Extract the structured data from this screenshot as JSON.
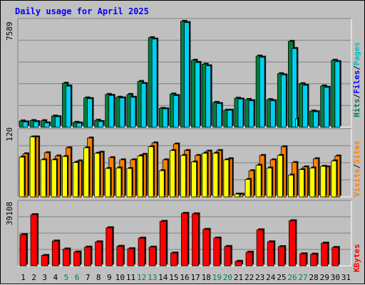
{
  "title": "Daily usage for April 2025",
  "colors": {
    "background": "#c0c0c0",
    "title": "#0000ff",
    "grid": "#808080",
    "hits": "#008040",
    "files": "#00d0f0",
    "pages": "#00ffff",
    "visits": "#ff8000",
    "sites": "#ffff00",
    "kbytes": "#ff0000",
    "weekend_label": "#008040"
  },
  "axis_labels": {
    "hits_panel_max": "7589",
    "visits_panel_max": "120",
    "kbytes_panel_max": "39108"
  },
  "legend": {
    "top_right": [
      {
        "text": "Hits",
        "color": "#008040"
      },
      {
        "text": "/",
        "color": "#000000"
      },
      {
        "text": "Files",
        "color": "#0000ff"
      },
      {
        "text": "/",
        "color": "#000000"
      },
      {
        "text": "Pages",
        "color": "#00c0c0"
      }
    ],
    "middle_right": [
      {
        "text": "Visits",
        "color": "#ff8000"
      },
      {
        "text": "/",
        "color": "#000000"
      },
      {
        "text": "Sites",
        "color": "#ff8000"
      }
    ],
    "bottom_right": [
      {
        "text": "KBytes",
        "color": "#ff0000"
      }
    ]
  },
  "chart_data": {
    "type": "bar",
    "title": "Daily usage for April 2025",
    "categories": [
      "1",
      "2",
      "3",
      "4",
      "5",
      "6",
      "7",
      "8",
      "9",
      "10",
      "11",
      "12",
      "13",
      "14",
      "15",
      "16",
      "17",
      "18",
      "19",
      "20",
      "21",
      "22",
      "23",
      "24",
      "25",
      "26",
      "27",
      "28",
      "29",
      "30",
      "31"
    ],
    "weekend_days": [
      "5",
      "6",
      "12",
      "13",
      "19",
      "20",
      "26",
      "27"
    ],
    "panels": [
      {
        "name": "usage",
        "ymax": 7589,
        "series": [
          {
            "name": "Hits",
            "values": [
              450,
              480,
              470,
              800,
              3150,
              350,
              2100,
              500,
              2350,
              2150,
              2350,
              3280,
              6420,
              1350,
              2380,
              7590,
              4800,
              4520,
              1780,
              1220,
              2080,
              1990,
              5100,
              1980,
              3840,
              6150,
              3120,
              1160,
              2960,
              4800,
              0
            ]
          },
          {
            "name": "Files",
            "values": [
              380,
              400,
              310,
              750,
              2950,
              300,
              2050,
              410,
              2280,
              2100,
              2150,
              3130,
              6320,
              1320,
              2270,
              7500,
              4640,
              4400,
              1700,
              1220,
              2020,
              1900,
              5020,
              1900,
              3750,
              5640,
              3010,
              1110,
              2860,
              4700,
              0
            ]
          },
          {
            "name": "Pages",
            "values": [
              0,
              0,
              0,
              0,
              0,
              0,
              0,
              0,
              0,
              0,
              0,
              0,
              0,
              0,
              0,
              0,
              0,
              0,
              0,
              0,
              0,
              0,
              0,
              0,
              0,
              600,
              0,
              0,
              0,
              0,
              0
            ]
          }
        ]
      },
      {
        "name": "visits",
        "ymax": 120,
        "series": [
          {
            "name": "Visits",
            "values": [
              79,
              110,
              81,
              75,
              90,
              66,
              108,
              82,
              72,
              68,
              68,
              78,
              99,
              68,
              97,
              85,
              76,
              84,
              85,
              70,
              5,
              48,
              76,
              68,
              92,
              63,
              55,
              70,
              55,
              75,
              0
            ]
          },
          {
            "name": "Sites",
            "values": [
              73,
              110,
              68,
              68,
              74,
              63,
              90,
              80,
              52,
              53,
              52,
              75,
              92,
              48,
              85,
              76,
              64,
              80,
              80,
              68,
              5,
              32,
              58,
              53,
              76,
              40,
              50,
              53,
              56,
              66,
              0
            ]
          }
        ]
      },
      {
        "name": "kbytes",
        "ymax": 39108,
        "series": [
          {
            "name": "KBytes",
            "values": [
              19500,
              32000,
              6500,
              15500,
              10500,
              8600,
              11700,
              15000,
              23800,
              12200,
              10700,
              17300,
              11700,
              27800,
              8000,
              32800,
              32500,
              22800,
              17400,
              12100,
              2800,
              8500,
              22500,
              15000,
              12000,
              28200,
              7500,
              7300,
              14200,
              11500,
              0
            ]
          }
        ]
      }
    ]
  }
}
